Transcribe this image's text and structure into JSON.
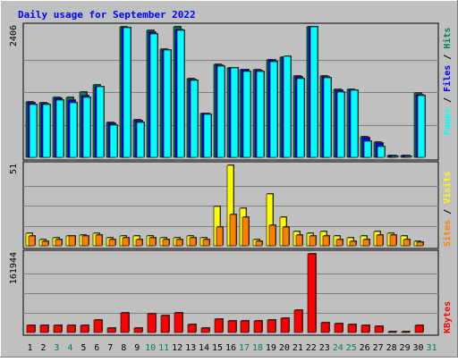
{
  "chart_data": {
    "type": "bar",
    "title": "Daily usage for September 2022",
    "categories": [
      "1",
      "2",
      "3",
      "4",
      "5",
      "6",
      "7",
      "8",
      "9",
      "10",
      "11",
      "12",
      "13",
      "14",
      "15",
      "16",
      "17",
      "18",
      "19",
      "20",
      "21",
      "22",
      "23",
      "24",
      "25",
      "26",
      "27",
      "28",
      "29",
      "30",
      "31"
    ],
    "weekend_days": [
      "3",
      "4",
      "10",
      "11",
      "17",
      "18",
      "24",
      "25",
      "31"
    ],
    "panels": [
      {
        "id": "hits",
        "ymax_label": "2406",
        "ymax": 2406,
        "series": [
          {
            "name": "Hits",
            "color": "#00805c",
            "values": [
              1020,
              1000,
              1100,
              1100,
              1200,
              1330,
              640,
              2406,
              700,
              2340,
              2000,
              2406,
              1450,
              810,
              1720,
              1650,
              1610,
              1610,
              1800,
              1850,
              1500,
              2406,
              1500,
              1250,
              1250,
              380,
              280,
              40,
              40,
              1180,
              0
            ]
          },
          {
            "name": "Files",
            "color": "#0000ff",
            "values": [
              1010,
              990,
              1090,
              1060,
              1130,
              1310,
              630,
              2390,
              680,
              2300,
              1980,
              2360,
              1440,
              800,
              1700,
              1650,
              1610,
              1600,
              1790,
              1850,
              1480,
              2390,
              1490,
              1240,
              1240,
              370,
              270,
              30,
              30,
              1150,
              0
            ]
          },
          {
            "name": "Pages",
            "color": "#00ffff",
            "values": [
              980,
              970,
              1050,
              1010,
              1100,
              1300,
              600,
              2390,
              640,
              2280,
              1980,
              2340,
              1420,
              790,
              1680,
              1640,
              1590,
              1590,
              1770,
              1860,
              1450,
              2400,
              1460,
              1210,
              1230,
              300,
              200,
              20,
              20,
              1140,
              0
            ]
          }
        ]
      },
      {
        "id": "visits",
        "ymax_label": "51",
        "ymax": 51,
        "series": [
          {
            "name": "Visits",
            "color": "#ffff00",
            "values": [
              8,
              4,
              5,
              6,
              7,
              8,
              5,
              6,
              6,
              6,
              5,
              5,
              6,
              5,
              25,
              51,
              24,
              4,
              33,
              18,
              9,
              8,
              9,
              6,
              5,
              6,
              9,
              8,
              6,
              3,
              0
            ]
          },
          {
            "name": "Sites",
            "color": "#ff8000",
            "values": [
              6,
              3,
              4,
              6,
              6,
              7,
              4,
              5,
              4,
              5,
              4,
              4,
              5,
              4,
              12,
              20,
              18,
              3,
              13,
              12,
              7,
              6,
              6,
              4,
              3,
              4,
              7,
              7,
              4,
              2,
              0
            ]
          }
        ]
      },
      {
        "id": "kbytes",
        "ymax_label": "161944",
        "ymax": 161944,
        "series": [
          {
            "name": "KBytes",
            "color": "#ff0000",
            "values": [
              14000,
              14000,
              15000,
              14500,
              15000,
              25000,
              9000,
              41000,
              9000,
              39000,
              35000,
              41000,
              17000,
              9000,
              27000,
              24000,
              24000,
              24000,
              26000,
              30000,
              46000,
              161944,
              21000,
              19000,
              17000,
              14000,
              12000,
              1000,
              1000,
              15000,
              0
            ]
          }
        ]
      }
    ],
    "legend_hits": [
      {
        "name": "Pages",
        "color": "#00ffff"
      },
      {
        "sep": " / "
      },
      {
        "name": "Files",
        "color": "#0000ff"
      },
      {
        "sep": " / "
      },
      {
        "name": "Hits",
        "color": "#00805c"
      }
    ],
    "legend_visits": [
      {
        "name": "Sites",
        "color": "#ff8000"
      },
      {
        "sep": " / "
      },
      {
        "name": "Visits",
        "color": "#ffff00"
      }
    ],
    "legend_kbytes": [
      {
        "name": "KBytes",
        "color": "#ff0000"
      }
    ]
  }
}
